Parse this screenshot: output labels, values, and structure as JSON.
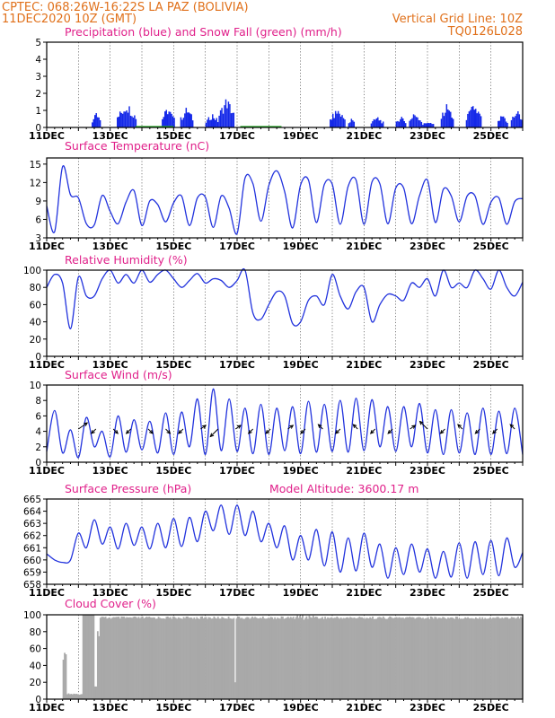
{
  "header": {
    "line1_left": "CPTEC:   068:26W-16:22S   LA PAZ (BOLIVIA)",
    "line2_left": "11DEC2020 10Z (GMT)",
    "line2_right": "Vertical Grid Line: 10Z",
    "line3_right": "TQ0126L028"
  },
  "x_axis": {
    "labels": [
      "11DEC",
      "13DEC",
      "15DEC",
      "17DEC",
      "19DEC",
      "21DEC",
      "23DEC",
      "25DEC"
    ],
    "label_days": [
      0,
      2,
      4,
      6,
      8,
      10,
      12,
      14
    ],
    "range_days": [
      0,
      15
    ]
  },
  "colors": {
    "line": "#2233dd",
    "precip": "#1428e8",
    "snow": "#22aa22",
    "cloud": "#a9a9a9",
    "title": "#e0208a",
    "header": "#e0701a"
  },
  "chart_data": [
    {
      "type": "bar",
      "title": "Precipitation (blue) and Snow Fall (green) (mm/h)",
      "ylim": [
        0,
        5
      ],
      "yticks": [
        0,
        1,
        2,
        3,
        4,
        5
      ],
      "series": [
        {
          "name": "Precipitation (blue)",
          "values_at": "hourly",
          "bursts": [
            [
              1.4,
              1.7,
              0.9
            ],
            [
              2.2,
              2.8,
              1.6
            ],
            [
              3.6,
              4.0,
              1.3
            ],
            [
              4.2,
              4.6,
              1.3
            ],
            [
              5.0,
              5.4,
              0.9
            ],
            [
              5.4,
              5.9,
              1.9
            ],
            [
              8.9,
              9.4,
              1.2
            ],
            [
              9.5,
              9.7,
              0.6
            ],
            [
              10.2,
              10.6,
              0.7
            ],
            [
              11.0,
              11.3,
              0.8
            ],
            [
              11.4,
              11.8,
              1.0
            ],
            [
              11.8,
              12.2,
              0.4
            ],
            [
              12.4,
              12.8,
              1.5
            ],
            [
              13.2,
              13.7,
              1.5
            ],
            [
              14.2,
              14.5,
              0.9
            ],
            [
              14.6,
              15.0,
              1.1
            ]
          ]
        },
        {
          "name": "Snow Fall (green)",
          "values": [
            0
          ]
        }
      ],
      "grid": true
    },
    {
      "type": "line",
      "title": "Surface Temperature (nC)",
      "ylim": [
        3,
        16
      ],
      "yticks": [
        3,
        6,
        9,
        12,
        15
      ],
      "series": [
        {
          "values": [
            8.2,
            4.0,
            14.6,
            10.0,
            9.5,
            5.3,
            5.1,
            9.9,
            7.3,
            5.3,
            8.8,
            10.7,
            5.0,
            9.0,
            8.4,
            5.6,
            8.7,
            9.8,
            5.0,
            9.5,
            9.6,
            4.7,
            9.8,
            7.8,
            3.7,
            12.7,
            11.8,
            5.7,
            11.5,
            13.9,
            10.5,
            4.6,
            11.6,
            12.4,
            5.5,
            11.7,
            11.7,
            5.2,
            11.4,
            12.4,
            5.2,
            12.1,
            11.8,
            5.3,
            11.1,
            11.1,
            5.3,
            9.9,
            12.4,
            5.5,
            10.9,
            9.8,
            5.6,
            9.8,
            9.8,
            5.2,
            8.8,
            9.5,
            5.2,
            8.9,
            9.4
          ]
        }
      ],
      "grid": true
    },
    {
      "type": "line",
      "title": "Relative Humidity (%)",
      "ylim": [
        0,
        100
      ],
      "yticks": [
        0,
        20,
        40,
        60,
        80,
        100
      ],
      "series": [
        {
          "values": [
            80,
            95,
            85,
            32,
            92,
            70,
            70,
            90,
            100,
            85,
            95,
            85,
            100,
            86,
            95,
            100,
            90,
            80,
            88,
            96,
            85,
            90,
            88,
            80,
            88,
            100,
            50,
            43,
            60,
            75,
            70,
            38,
            40,
            65,
            70,
            60,
            95,
            70,
            55,
            75,
            80,
            40,
            60,
            72,
            70,
            65,
            85,
            80,
            90,
            70,
            100,
            80,
            85,
            80,
            100,
            90,
            78,
            100,
            80,
            70,
            86
          ]
        }
      ],
      "grid": true
    },
    {
      "type": "line",
      "title": "Surface Wind (m/s)",
      "ylim": [
        0,
        10
      ],
      "yticks": [
        0,
        2,
        4,
        6,
        8,
        10
      ],
      "series": [
        {
          "values": [
            1.4,
            6.7,
            1.2,
            4.2,
            0.6,
            5.8,
            2.0,
            4.0,
            0.7,
            6.0,
            1.3,
            5.5,
            1.6,
            5.3,
            1.2,
            6.4,
            1.0,
            6.5,
            2.0,
            8.2,
            1.0,
            9.5,
            1.5,
            8.2,
            1.4,
            7.0,
            1.1,
            7.5,
            1.0,
            7.0,
            1.5,
            7.2,
            1.1,
            7.9,
            1.3,
            7.5,
            1.4,
            8.0,
            1.3,
            8.3,
            1.5,
            8.1,
            2.0,
            7.2,
            1.4,
            7.2,
            2.0,
            7.6,
            1.2,
            6.8,
            1.0,
            6.8,
            1.2,
            6.4,
            1.0,
            7.0,
            1.0,
            6.6,
            1.1,
            7.0,
            1.0
          ]
        }
      ],
      "arrows": "wind direction barbs",
      "grid": true
    },
    {
      "type": "line",
      "title": "Surface Pressure (hPa)",
      "annotation": "Model Altitude: 3600.17 m",
      "ylim": [
        658,
        665
      ],
      "yticks": [
        658,
        659,
        660,
        661,
        662,
        663,
        664,
        665
      ],
      "series": [
        {
          "values": [
            660.5,
            660.0,
            659.8,
            660.0,
            662.2,
            661.0,
            663.3,
            661.3,
            662.7,
            660.9,
            663.0,
            661.2,
            662.7,
            660.9,
            663.0,
            661.0,
            663.4,
            661.1,
            663.5,
            661.5,
            664.0,
            662.4,
            664.5,
            662.1,
            664.5,
            662.0,
            664.0,
            661.5,
            663.0,
            661.0,
            662.8,
            660.0,
            662.0,
            660.0,
            662.5,
            659.5,
            662.3,
            659.0,
            661.8,
            659.1,
            662.2,
            659.4,
            661.3,
            658.5,
            661.0,
            658.8,
            661.3,
            659.0,
            660.9,
            658.5,
            660.7,
            658.6,
            661.4,
            658.5,
            661.5,
            658.8,
            661.6,
            658.7,
            661.8,
            659.4,
            660.6
          ]
        }
      ],
      "grid": true
    },
    {
      "type": "bar",
      "title": "Cloud Cover (%)",
      "ylim": [
        0,
        100
      ],
      "yticks": [
        0,
        20,
        40,
        60,
        80,
        100
      ],
      "series": [
        {
          "values_at": "hourly",
          "level": 98
        }
      ],
      "grid": true
    }
  ]
}
